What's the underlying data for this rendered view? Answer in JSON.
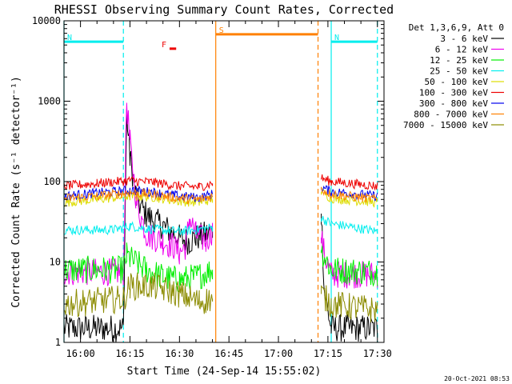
{
  "chart_data": {
    "type": "line",
    "title": "RHESSI Observing Summary Count Rates, Corrected",
    "xlabel": "Start Time (24-Sep-14 15:55:02)",
    "ylabel": "Corrected Count Rate (s⁻¹ detector⁻¹)",
    "footer": "20-Oct-2021 08:53",
    "yscale": "log",
    "ylim": [
      1,
      10000
    ],
    "xlim": [
      "15:55",
      "17:32"
    ],
    "x_ticks": [
      "16:00",
      "16:15",
      "16:30",
      "16:45",
      "17:00",
      "17:15",
      "17:30"
    ],
    "y_ticks": [
      "1",
      "10",
      "100",
      "1000",
      "10000"
    ],
    "legend_title": "Det 1,3,6,9, Att 0",
    "legend_position": "right",
    "series": [
      {
        "name": "3 - 6 keV",
        "color": "#000000",
        "points": [
          [
            "15:55",
            "1.5"
          ],
          [
            "16:13",
            "1.5"
          ],
          [
            "16:14",
            "700"
          ],
          [
            "16:15",
            "200"
          ],
          [
            "16:17",
            "60"
          ],
          [
            "16:20",
            "38"
          ],
          [
            "16:25",
            "28"
          ],
          [
            "16:30",
            "20"
          ],
          [
            "16:33",
            "18"
          ],
          [
            "16:35",
            "20"
          ],
          [
            "16:38",
            "22"
          ],
          [
            "16:40",
            "24"
          ],
          [
            "17:13",
            "40"
          ],
          [
            "17:14",
            "4"
          ],
          [
            "17:16",
            "1.5"
          ],
          [
            "17:30",
            "1.5"
          ]
        ]
      },
      {
        "name": "6 - 12 keV",
        "color": "#ee00ee",
        "points": [
          [
            "15:55",
            "7.5"
          ],
          [
            "16:13",
            "7.5"
          ],
          [
            "16:14",
            "1000"
          ],
          [
            "16:15",
            "300"
          ],
          [
            "16:17",
            "55"
          ],
          [
            "16:20",
            "22"
          ],
          [
            "16:25",
            "18"
          ],
          [
            "16:28",
            "16"
          ],
          [
            "16:30",
            "13"
          ],
          [
            "16:32",
            "16"
          ],
          [
            "16:33",
            "35"
          ],
          [
            "16:35",
            "22"
          ],
          [
            "16:38",
            "18"
          ],
          [
            "16:40",
            "25"
          ],
          [
            "17:13",
            "20"
          ],
          [
            "17:14",
            "12"
          ],
          [
            "17:16",
            "7"
          ],
          [
            "17:30",
            "7"
          ]
        ]
      },
      {
        "name": "12 - 25 keV",
        "color": "#00ee00",
        "points": [
          [
            "15:55",
            "8"
          ],
          [
            "16:13",
            "8"
          ],
          [
            "16:14",
            "12"
          ],
          [
            "16:15",
            "11"
          ],
          [
            "16:20",
            "8"
          ],
          [
            "16:25",
            "6.5"
          ],
          [
            "16:30",
            "6"
          ],
          [
            "16:35",
            "6.5"
          ],
          [
            "16:40",
            "8"
          ],
          [
            "17:13",
            "14"
          ],
          [
            "17:16",
            "8"
          ],
          [
            "17:30",
            "7.5"
          ]
        ]
      },
      {
        "name": "25 - 50 keV",
        "color": "#00eeee",
        "points": [
          [
            "15:55",
            "25"
          ],
          [
            "16:10",
            "25"
          ],
          [
            "16:15",
            "28"
          ],
          [
            "16:20",
            "26"
          ],
          [
            "16:30",
            "24"
          ],
          [
            "16:35",
            "25"
          ],
          [
            "16:40",
            "27"
          ],
          [
            "17:13",
            "35"
          ],
          [
            "17:16",
            "30"
          ],
          [
            "17:30",
            "24"
          ]
        ]
      },
      {
        "name": "50 - 100 keV",
        "color": "#dddd00",
        "points": [
          [
            "15:55",
            "55"
          ],
          [
            "16:05",
            "60"
          ],
          [
            "16:15",
            "66"
          ],
          [
            "16:22",
            "64"
          ],
          [
            "16:30",
            "57"
          ],
          [
            "16:36",
            "55"
          ],
          [
            "16:40",
            "60"
          ],
          [
            "17:13",
            "75"
          ],
          [
            "17:16",
            "62"
          ],
          [
            "17:30",
            "55"
          ]
        ]
      },
      {
        "name": "100 - 300 keV",
        "color": "#ee0000",
        "points": [
          [
            "15:55",
            "88"
          ],
          [
            "16:05",
            "95"
          ],
          [
            "16:15",
            "103"
          ],
          [
            "16:22",
            "98"
          ],
          [
            "16:30",
            "88"
          ],
          [
            "16:36",
            "86"
          ],
          [
            "16:40",
            "95"
          ],
          [
            "17:13",
            "110"
          ],
          [
            "17:16",
            "100"
          ],
          [
            "17:30",
            "88"
          ]
        ]
      },
      {
        "name": "300 - 800 keV",
        "color": "#0000ee",
        "points": [
          [
            "15:55",
            "66"
          ],
          [
            "16:05",
            "72"
          ],
          [
            "16:15",
            "78"
          ],
          [
            "16:22",
            "74"
          ],
          [
            "16:30",
            "66"
          ],
          [
            "16:36",
            "63"
          ],
          [
            "16:40",
            "70"
          ],
          [
            "17:13",
            "85"
          ],
          [
            "17:16",
            "75"
          ],
          [
            "17:30",
            "66"
          ]
        ]
      },
      {
        "name": "800 - 7000 keV",
        "color": "#ff8000",
        "points": [
          [
            "15:55",
            "62"
          ],
          [
            "16:05",
            "66"
          ],
          [
            "16:15",
            "73"
          ],
          [
            "16:22",
            "69"
          ],
          [
            "16:30",
            "62"
          ],
          [
            "16:36",
            "60"
          ],
          [
            "16:40",
            "66"
          ],
          [
            "17:13",
            "80"
          ],
          [
            "17:16",
            "70"
          ],
          [
            "17:30",
            "60"
          ]
        ]
      },
      {
        "name": "7000 - 15000 keV",
        "color": "#8b8b00",
        "points": [
          [
            "15:55",
            "3"
          ],
          [
            "16:13",
            "3.5"
          ],
          [
            "16:15",
            "5"
          ],
          [
            "16:22",
            "5"
          ],
          [
            "16:30",
            "4"
          ],
          [
            "16:36",
            "3.2"
          ],
          [
            "16:40",
            "3.5"
          ],
          [
            "17:13",
            "4"
          ],
          [
            "17:16",
            "3"
          ],
          [
            "17:30",
            "2.5"
          ]
        ]
      }
    ],
    "state_bars": [
      {
        "label": "N",
        "color": "#00eeee",
        "start": "15:55",
        "end": "16:13",
        "y": "5500"
      },
      {
        "label": "N",
        "color": "#00eeee",
        "start": "17:16",
        "end": "17:30",
        "y": "5500"
      },
      {
        "label": "S",
        "color": "#ff8000",
        "start": "16:41",
        "end": "17:12",
        "y": "6800"
      },
      {
        "label": "F",
        "color": "#ee0000",
        "start": "16:27",
        "end": "16:29",
        "y": "4500"
      }
    ],
    "vertical_lines": [
      {
        "x": "15:55",
        "color": "#00eeee",
        "style": "solid"
      },
      {
        "x": "16:13",
        "color": "#00eeee",
        "style": "dashed"
      },
      {
        "x": "16:41",
        "color": "#ff8000",
        "style": "solid"
      },
      {
        "x": "17:12",
        "color": "#ff8000",
        "style": "dashed"
      },
      {
        "x": "17:16",
        "color": "#00eeee",
        "style": "solid"
      },
      {
        "x": "17:30",
        "color": "#00eeee",
        "style": "dashed"
      }
    ]
  }
}
